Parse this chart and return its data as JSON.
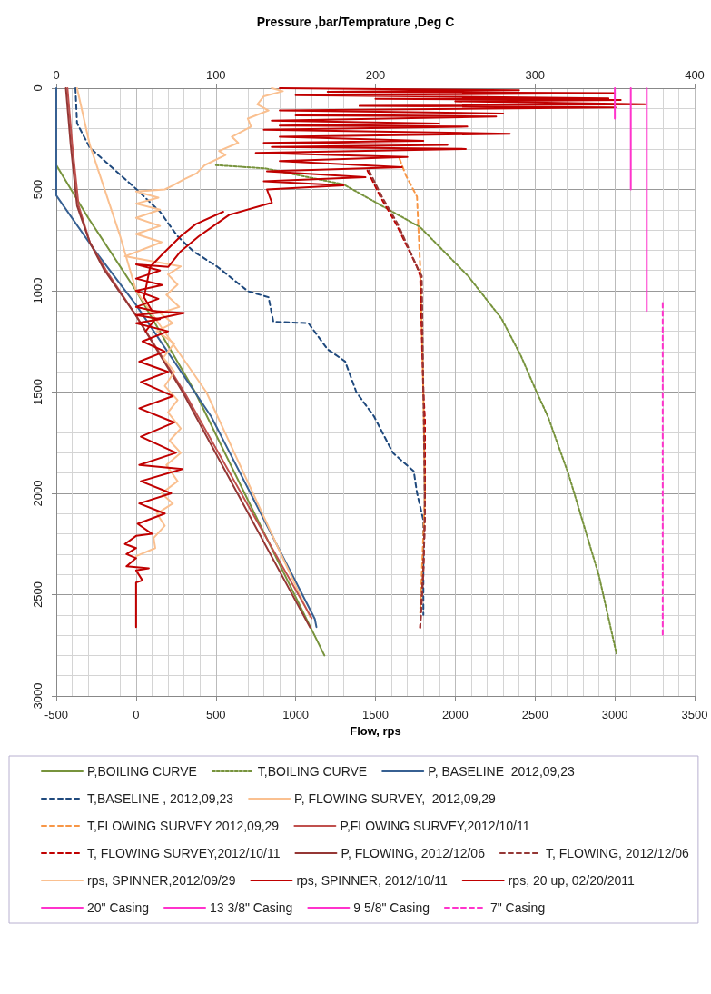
{
  "chart_data": {
    "type": "line",
    "title": "Pressure ,bar/Temprature ,Deg C",
    "xlabel": "Flow, rps",
    "xlim": [
      -500,
      3500
    ],
    "xticks": [
      -500,
      0,
      500,
      1000,
      1500,
      2000,
      2500,
      3000,
      3500
    ],
    "x2lim": [
      0,
      400
    ],
    "x2ticks": [
      0,
      100,
      200,
      300,
      400
    ],
    "ylim": [
      3000,
      0
    ],
    "yticks": [
      0,
      500,
      1000,
      1500,
      2000,
      2500,
      3000
    ],
    "grid": true,
    "legend": "bottom",
    "marker": "none",
    "series": [
      {
        "name": "P,BOILING CURVE",
        "color": "#77933c",
        "axis": "x2",
        "line_style": "solid",
        "x": [
          0,
          20,
          50,
          87,
          118,
          168
        ],
        "values": [
          380,
          640,
          1000,
          1500,
          2000,
          2800
        ]
      },
      {
        "name": "T,BOILING CURVE",
        "color": "#77933c",
        "axis": "x2",
        "line_style": "dotted",
        "x": [
          100,
          131,
          180,
          228,
          258,
          279,
          291,
          301,
          308,
          321,
          340,
          351
        ],
        "values": [
          380,
          396,
          475,
          686,
          927,
          1138,
          1319,
          1500,
          1620,
          1906,
          2405,
          2790
        ]
      },
      {
        "name": "P, BASELINE  2012,09,23",
        "color": "#376092",
        "axis": "x2",
        "line_style": "solid",
        "x": [
          0,
          0,
          24,
          50,
          97,
          162,
          163
        ],
        "values": [
          0,
          530,
          800,
          1070,
          1620,
          2620,
          2660
        ]
      },
      {
        "name": "T,BASELINE , 2012,09,23",
        "color": "#1f497d",
        "axis": "x2",
        "line_style": "dashed",
        "x": [
          12,
          13,
          21,
          49,
          65,
          76,
          86,
          101,
          120,
          133,
          136,
          158,
          170,
          181,
          188,
          199,
          211,
          224,
          226,
          230,
          230
        ],
        "values": [
          0,
          173,
          294,
          490,
          610,
          731,
          806,
          882,
          1002,
          1032,
          1153,
          1160,
          1289,
          1349,
          1500,
          1619,
          1801,
          1891,
          1997,
          2133,
          2600
        ]
      },
      {
        "name": "P, FLOWING SURVEY,  2012,09,29",
        "color": "#fac090",
        "axis": "x2",
        "line_style": "solid",
        "x": [
          13,
          21,
          40,
          50,
          94,
          159
        ],
        "values": [
          0,
          280,
          730,
          1000,
          1500,
          2610
        ]
      },
      {
        "name": "T,FLOWING SURVEY 2012,09,29",
        "color": "#f79646",
        "axis": "x2",
        "line_style": "dashed",
        "x": [
          215,
          219,
          226,
          228,
          229,
          230,
          231,
          229,
          228
        ],
        "values": [
          347,
          430,
          535,
          880,
          1183,
          1500,
          2000,
          2400,
          2590
        ]
      },
      {
        "name": "P,FLOWING SURVEY,2012/10/11",
        "color": "#c0504d",
        "axis": "x2",
        "line_style": "solid",
        "x": [
          7,
          10,
          14,
          21,
          31,
          50,
          80,
          160
        ],
        "values": [
          0,
          279,
          580,
          761,
          897,
          1123,
          1498,
          2616
        ]
      },
      {
        "name": "T, FLOWING SURVEY,2012/10/11",
        "color": "#c00000",
        "axis": "x2",
        "line_style": "dashed",
        "x": [
          195,
          203,
          213,
          226,
          228,
          230,
          231,
          231,
          230,
          228
        ],
        "values": [
          407,
          535,
          671,
          882,
          927,
          1500,
          1635,
          2103,
          2375,
          2662
        ]
      },
      {
        "name": "P, FLOWING, 2012/12/06",
        "color": "#953735",
        "axis": "x2",
        "line_style": "solid",
        "x": [
          6,
          9,
          13,
          21,
          30,
          50,
          79,
          159
        ],
        "values": [
          0,
          279,
          580,
          761,
          897,
          1123,
          1498,
          2662
        ]
      },
      {
        "name": "T, FLOWING, 2012/12/06",
        "color": "#953735",
        "axis": "x2",
        "line_style": "dashed",
        "x": [
          196,
          204,
          214,
          226,
          229,
          230,
          231,
          230,
          228
        ],
        "values": [
          407,
          535,
          671,
          882,
          927,
          1500,
          2100,
          2375,
          2662
        ]
      },
      {
        "name": "rps, SPINNER,2012/09/29",
        "color": "#fac090",
        "line_style": "solid",
        "x": [
          850,
          920,
          800,
          760,
          830,
          700,
          720,
          600,
          640,
          520,
          560,
          430,
          380,
          300,
          230,
          180,
          0,
          140,
          0,
          150,
          0,
          150,
          0,
          160,
          -70,
          0,
          280,
          200,
          260,
          190,
          270,
          150,
          230,
          130,
          240,
          170,
          240,
          180,
          260,
          200,
          280,
          210,
          280,
          190,
          260,
          160,
          230,
          130,
          180,
          110,
          120,
          0
        ],
        "values": [
          0,
          15,
          40,
          80,
          110,
          150,
          190,
          240,
          270,
          310,
          330,
          380,
          420,
          450,
          480,
          500,
          510,
          540,
          570,
          600,
          640,
          680,
          720,
          760,
          830,
          840,
          880,
          920,
          970,
          1020,
          1080,
          1110,
          1160,
          1200,
          1260,
          1330,
          1400,
          1470,
          1540,
          1600,
          1680,
          1740,
          1800,
          1860,
          1940,
          2000,
          2050,
          2100,
          2160,
          2220,
          2270,
          2310
        ]
      },
      {
        "name": "rps, SPINNER, 2012/10/11",
        "color": "#c00000",
        "line_style": "solid",
        "x": [
          900,
          2400,
          1200,
          3000,
          1000,
          2960,
          1500,
          3037,
          2000,
          3189,
          1400,
          3004,
          900,
          2300,
          1000,
          2256,
          850,
          1900,
          900,
          2075,
          800,
          2342,
          900,
          1800,
          800,
          1951,
          850,
          2066,
          750,
          1700,
          900,
          1666,
          820,
          1437,
          800,
          1300,
          820,
          851,
          584,
          393,
          279,
          202,
          0,
          150,
          0,
          164,
          0,
          140,
          0,
          155,
          0,
          150,
          0,
          200,
          40,
          180,
          20,
          200,
          30,
          230,
          20,
          240,
          30,
          250,
          20,
          290,
          30,
          220,
          20,
          180,
          10,
          100,
          0,
          -70,
          0,
          -60,
          0,
          -60,
          80,
          0,
          40,
          0,
          0
        ],
        "values": [
          0,
          10,
          18,
          25,
          35,
          50,
          53,
          58,
          65,
          80,
          88,
          95,
          110,
          125,
          135,
          140,
          160,
          175,
          185,
          190,
          205,
          225,
          240,
          260,
          270,
          280,
          290,
          300,
          320,
          340,
          360,
          390,
          410,
          440,
          460,
          480,
          500,
          565,
          625,
          731,
          806,
          882,
          870,
          900,
          940,
          972,
          1000,
          1040,
          1080,
          1108,
          1120,
          1140,
          1160,
          1200,
          1250,
          1300,
          1350,
          1400,
          1450,
          1520,
          1580,
          1650,
          1720,
          1800,
          1860,
          1880,
          1940,
          2000,
          2050,
          2100,
          2150,
          2200,
          2210,
          2250,
          2270,
          2300,
          2320,
          2360,
          2370,
          2380,
          2430,
          2440,
          2660
        ]
      },
      {
        "name": "rps, 20 up, 02/20/2011",
        "color": "#c00000",
        "line_style": "solid",
        "x": [
          546,
          374,
          279,
          164,
          88,
          50,
          100,
          300,
          120,
          60
        ],
        "values": [
          610,
          671,
          731,
          821,
          882,
          1032,
          1100,
          1110,
          1140,
          1200
        ]
      },
      {
        "name": "20\" Casing",
        "color": "#ff33cc",
        "line_style": "solid",
        "x": [
          3000,
          3000
        ],
        "values": [
          0,
          150
        ]
      },
      {
        "name": "13 3/8\" Casing",
        "color": "#ff33cc",
        "line_style": "solid",
        "x": [
          3100,
          3100
        ],
        "values": [
          0,
          500
        ]
      },
      {
        "name": "9 5/8\" Casing",
        "color": "#ff33cc",
        "line_style": "solid",
        "x": [
          3200,
          3200
        ],
        "values": [
          0,
          1100
        ]
      },
      {
        "name": "7\" Casing",
        "color": "#ff33cc",
        "line_style": "dashed",
        "x": [
          3300,
          3300
        ],
        "values": [
          1060,
          2700
        ]
      }
    ]
  }
}
